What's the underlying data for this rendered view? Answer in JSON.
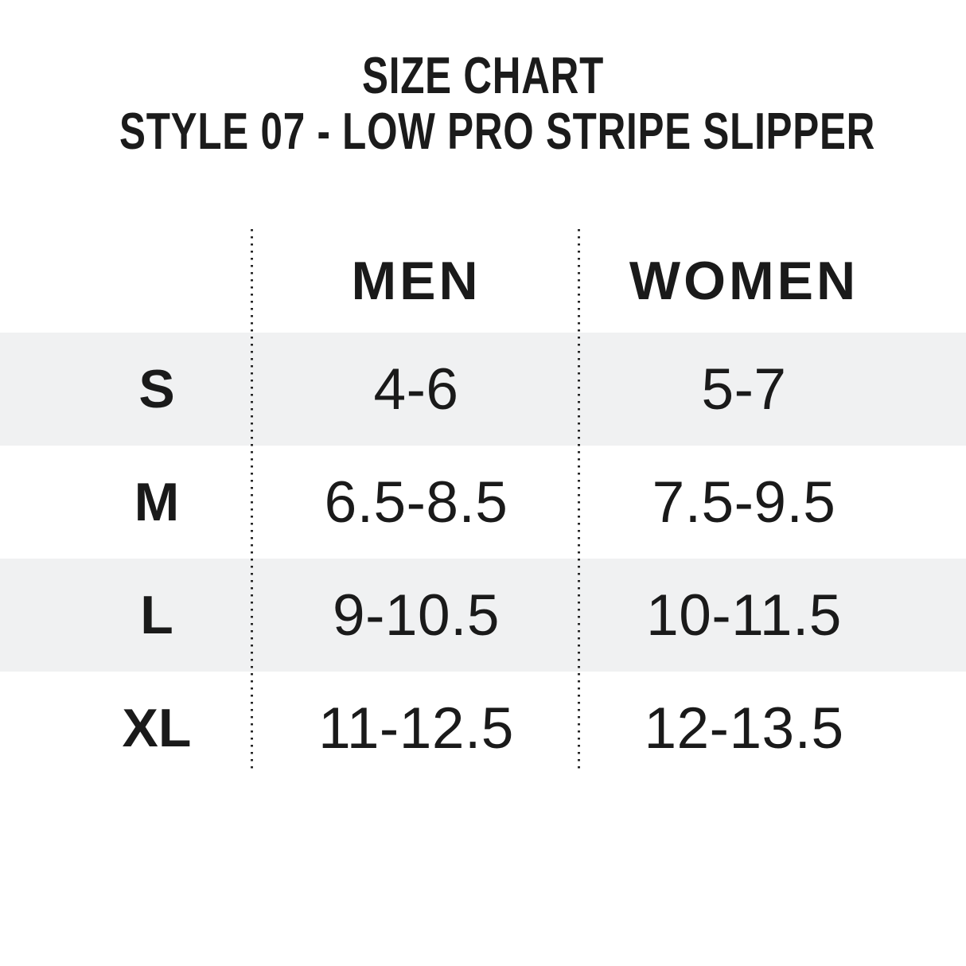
{
  "title": {
    "line1": "SIZE CHART",
    "line2": "STYLE 07 - LOW PRO STRIPE SLIPPER"
  },
  "chart_data": {
    "type": "table",
    "title": "SIZE CHART",
    "subtitle": "STYLE 07 - LOW PRO STRIPE SLIPPER",
    "columns": [
      "",
      "MEN",
      "WOMEN"
    ],
    "rows": [
      {
        "size": "S",
        "men": "4-6",
        "women": "5-7",
        "shaded": true
      },
      {
        "size": "M",
        "men": "6.5-8.5",
        "women": "7.5-9.5",
        "shaded": false
      },
      {
        "size": "L",
        "men": "9-10.5",
        "women": "10-11.5",
        "shaded": true
      },
      {
        "size": "XL",
        "men": "11-12.5",
        "women": "12-13.5",
        "shaded": false
      }
    ],
    "layout": {
      "legend": false,
      "grid": "dotted vertical column dividers",
      "shaded_row_color": "#f0f1f2"
    }
  },
  "colors": {
    "background": "#ffffff",
    "row_shaded": "#f0f1f2",
    "text": "#1a1a1a",
    "divider_dots": "#262626"
  }
}
